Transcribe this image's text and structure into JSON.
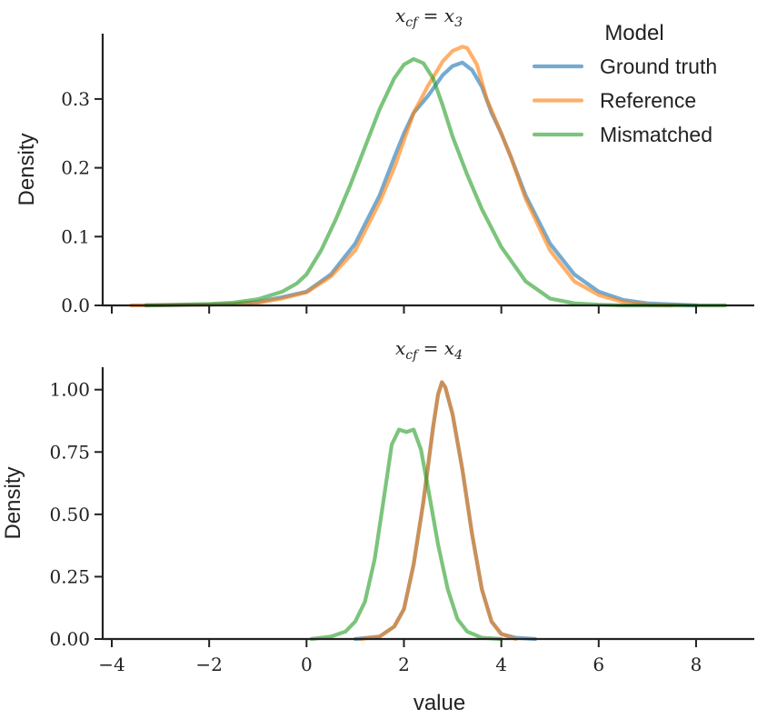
{
  "chart_data": [
    {
      "type": "line",
      "title": {
        "var": "x",
        "sub": "cf",
        "eq": " = ",
        "rhs": "x",
        "rhs_sub": "3"
      },
      "xlabel": "",
      "ylabel": "Density",
      "xlim": [
        -4.2,
        9.2
      ],
      "ylim": [
        0,
        0.395
      ],
      "xticks": [
        -4,
        -2,
        0,
        2,
        4,
        6,
        8
      ],
      "xtick_labels_visible": false,
      "yticks": [
        0.0,
        0.1,
        0.2,
        0.3
      ],
      "ytick_labels": [
        "0.0",
        "0.1",
        "0.2",
        "0.3"
      ],
      "grid": false,
      "legend": {
        "title": "Model",
        "placement": "top-right",
        "entries": [
          "Ground truth",
          "Reference",
          "Mismatched"
        ]
      },
      "series": [
        {
          "name": "Ground truth",
          "color": "#1f77b4",
          "x": [
            -3.3,
            -2.0,
            -1.5,
            -1.0,
            -0.5,
            0.0,
            0.5,
            1.0,
            1.5,
            1.8,
            2.0,
            2.2,
            2.5,
            2.8,
            3.0,
            3.2,
            3.4,
            3.6,
            3.8,
            4.0,
            4.2,
            4.5,
            5.0,
            5.5,
            6.0,
            6.5,
            7.0,
            8.0
          ],
          "y": [
            0.0,
            0.001,
            0.002,
            0.005,
            0.012,
            0.02,
            0.045,
            0.09,
            0.16,
            0.215,
            0.25,
            0.28,
            0.305,
            0.335,
            0.348,
            0.353,
            0.342,
            0.318,
            0.28,
            0.25,
            0.215,
            0.16,
            0.09,
            0.045,
            0.02,
            0.008,
            0.003,
            0.0
          ]
        },
        {
          "name": "Reference",
          "color": "#ff7f0e",
          "x": [
            -3.6,
            -2.0,
            -1.5,
            -1.0,
            -0.5,
            0.0,
            0.5,
            1.0,
            1.5,
            1.8,
            2.0,
            2.2,
            2.5,
            2.8,
            3.0,
            3.2,
            3.3,
            3.5,
            3.7,
            4.0,
            4.2,
            4.5,
            5.0,
            5.5,
            6.0,
            6.5,
            7.0,
            7.5
          ],
          "y": [
            0.0,
            0.001,
            0.002,
            0.004,
            0.01,
            0.019,
            0.042,
            0.08,
            0.15,
            0.2,
            0.24,
            0.28,
            0.32,
            0.355,
            0.37,
            0.376,
            0.374,
            0.35,
            0.3,
            0.25,
            0.215,
            0.155,
            0.08,
            0.035,
            0.015,
            0.005,
            0.001,
            0.0
          ]
        },
        {
          "name": "Mismatched",
          "color": "#2ca02c",
          "x": [
            -3.3,
            -2.0,
            -1.5,
            -1.0,
            -0.5,
            -0.2,
            0.0,
            0.3,
            0.6,
            0.9,
            1.2,
            1.5,
            1.8,
            2.0,
            2.2,
            2.4,
            2.6,
            2.8,
            3.0,
            3.3,
            3.6,
            4.0,
            4.5,
            5.0,
            5.5,
            6.0,
            6.5,
            7.0,
            8.0,
            8.6
          ],
          "y": [
            0.0,
            0.002,
            0.004,
            0.009,
            0.02,
            0.032,
            0.045,
            0.08,
            0.125,
            0.175,
            0.23,
            0.285,
            0.33,
            0.35,
            0.358,
            0.352,
            0.33,
            0.29,
            0.245,
            0.19,
            0.14,
            0.085,
            0.035,
            0.01,
            0.003,
            0.001,
            0.0,
            0.0,
            0.0,
            0.0
          ]
        }
      ]
    },
    {
      "type": "line",
      "title": {
        "var": "x",
        "sub": "cf",
        "eq": " = ",
        "rhs": "x",
        "rhs_sub": "4"
      },
      "xlabel": "value",
      "ylabel": "Density",
      "xlim": [
        -4.2,
        9.2
      ],
      "ylim": [
        0,
        1.09
      ],
      "xticks": [
        -4,
        -2,
        0,
        2,
        4,
        6,
        8
      ],
      "xtick_labels": [
        "−4",
        "−2",
        "0",
        "2",
        "4",
        "6",
        "8"
      ],
      "yticks": [
        0.0,
        0.25,
        0.5,
        0.75,
        1.0
      ],
      "ytick_labels": [
        "0.00",
        "0.25",
        "0.50",
        "0.75",
        "1.00"
      ],
      "grid": false,
      "series": [
        {
          "name": "Ground truth",
          "color": "#1f77b4",
          "x": [
            1.0,
            1.5,
            1.8,
            2.0,
            2.2,
            2.4,
            2.6,
            2.7,
            2.78,
            2.85,
            3.0,
            3.2,
            3.4,
            3.6,
            3.8,
            4.0,
            4.3,
            4.7
          ],
          "y": [
            0.0,
            0.01,
            0.05,
            0.12,
            0.3,
            0.55,
            0.85,
            0.98,
            1.03,
            1.01,
            0.9,
            0.68,
            0.42,
            0.2,
            0.07,
            0.02,
            0.005,
            0.0
          ]
        },
        {
          "name": "Reference",
          "color": "#ff7f0e",
          "x": [
            1.1,
            1.5,
            1.8,
            2.0,
            2.2,
            2.4,
            2.6,
            2.7,
            2.78,
            2.85,
            3.0,
            3.2,
            3.4,
            3.6,
            3.8,
            4.0,
            4.3
          ],
          "y": [
            0.0,
            0.01,
            0.05,
            0.12,
            0.3,
            0.55,
            0.85,
            0.98,
            1.03,
            1.01,
            0.9,
            0.68,
            0.42,
            0.2,
            0.07,
            0.02,
            0.0
          ]
        },
        {
          "name": "Mismatched",
          "color": "#2ca02c",
          "x": [
            0.1,
            0.5,
            0.8,
            1.0,
            1.2,
            1.4,
            1.6,
            1.75,
            1.9,
            2.05,
            2.2,
            2.35,
            2.5,
            2.7,
            2.9,
            3.1,
            3.3,
            3.6,
            4.0
          ],
          "y": [
            0.0,
            0.01,
            0.03,
            0.07,
            0.15,
            0.32,
            0.58,
            0.78,
            0.84,
            0.83,
            0.84,
            0.76,
            0.6,
            0.38,
            0.2,
            0.08,
            0.03,
            0.005,
            0.0
          ]
        }
      ]
    }
  ]
}
